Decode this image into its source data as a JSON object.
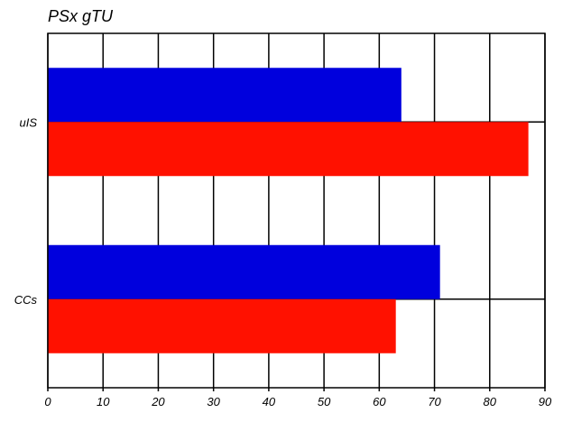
{
  "chart_data": {
    "type": "bar",
    "orientation": "horizontal",
    "title": "PSx gTU",
    "xlabel": "",
    "ylabel": "",
    "categories": [
      "uIS",
      "CCs"
    ],
    "series": [
      {
        "color": "#0000dd",
        "values": [
          64,
          71
        ]
      },
      {
        "color": "#ff1100",
        "values": [
          87,
          63
        ]
      }
    ],
    "xlim": [
      0,
      90
    ],
    "xticks": [
      "0",
      "10",
      "20",
      "30",
      "40",
      "50",
      "60",
      "70",
      "80",
      "90"
    ],
    "grid": true,
    "legend": false
  }
}
